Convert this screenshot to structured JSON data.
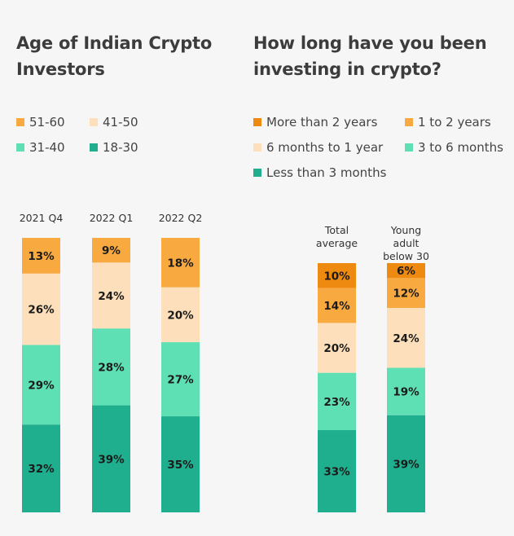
{
  "chart_data": [
    {
      "type": "bar",
      "stacked": true,
      "title": "Age of Indian Crypto Investors",
      "categories": [
        "2021 Q4",
        "2022 Q1",
        "2022 Q2"
      ],
      "series": [
        {
          "name": "18-30",
          "color": "#1fae8e",
          "values": [
            32,
            39,
            35
          ]
        },
        {
          "name": "31-40",
          "color": "#5ee0b4",
          "values": [
            29,
            28,
            27
          ]
        },
        {
          "name": "41-50",
          "color": "#fde0bb",
          "values": [
            26,
            24,
            20
          ]
        },
        {
          "name": "51-60",
          "color": "#f8a940",
          "values": [
            13,
            9,
            18
          ]
        }
      ],
      "value_suffix": "%",
      "legend_order": [
        "51-60",
        "41-50",
        "31-40",
        "18-30"
      ],
      "legend_position": "top-left",
      "ylim": [
        0,
        100
      ],
      "grid": false
    },
    {
      "type": "bar",
      "stacked": true,
      "title": "How long have you been investing in crypto?",
      "categories": [
        "Total average",
        "Young adult below 30"
      ],
      "category_lines": [
        [
          "Total",
          "average"
        ],
        [
          "Young",
          "adult",
          "below 30"
        ]
      ],
      "series": [
        {
          "name": "Less than 3 months",
          "color": "#1fae8e",
          "values": [
            33,
            39
          ]
        },
        {
          "name": "3 to 6 months",
          "color": "#5ee0b4",
          "values": [
            23,
            19
          ]
        },
        {
          "name": "6 months to 1 year",
          "color": "#fde0bb",
          "values": [
            20,
            24
          ]
        },
        {
          "name": "1 to 2 years",
          "color": "#f8a940",
          "values": [
            14,
            12
          ]
        },
        {
          "name": "More than 2 years",
          "color": "#ee8a0f",
          "values": [
            10,
            6
          ]
        }
      ],
      "value_suffix": "%",
      "legend_order": [
        "More than 2 years",
        "1 to 2 years",
        "6 months to 1 year",
        "3 to 6 months",
        "Less than 3 months"
      ],
      "legend_position": "top-right",
      "ylim": [
        0,
        100
      ],
      "grid": false
    }
  ]
}
